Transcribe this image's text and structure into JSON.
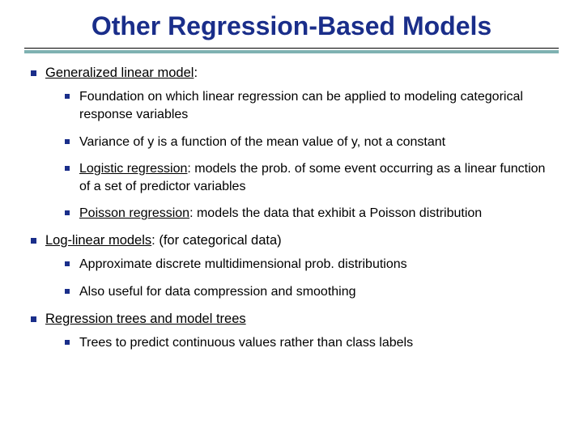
{
  "title": "Other Regression-Based Models",
  "title_color": "#1a2e8a",
  "title_fontsize": 32,
  "rule_top_color": "#000000",
  "rule_bottom_color": "#7fb2b2",
  "bullet_color": "#1a2e8a",
  "background_color": "#ffffff",
  "body_fontsize": 16.5,
  "sub_fontsize": 16,
  "b1": {
    "head_u": "Generalized linear model",
    "head_rest": ":",
    "s1": "Foundation on which linear regression can be applied to modeling categorical response variables",
    "s2": "Variance of y is a function of the mean value of y, not a constant",
    "s3_u": "Logistic regression",
    "s3_rest": ": models the prob. of some event occurring as a linear function of a set of predictor variables",
    "s4_u": "Poisson regression",
    "s4_rest": ": models the data that exhibit a Poisson distribution"
  },
  "b2": {
    "head_u": "Log-linear models",
    "head_rest": ": (for categorical data)",
    "s1": "Approximate discrete multidimensional prob. distributions",
    "s2": "Also useful for data compression and smoothing"
  },
  "b3": {
    "head_u": "Regression trees and model trees",
    "s1": "Trees to predict continuous values rather than class labels"
  }
}
